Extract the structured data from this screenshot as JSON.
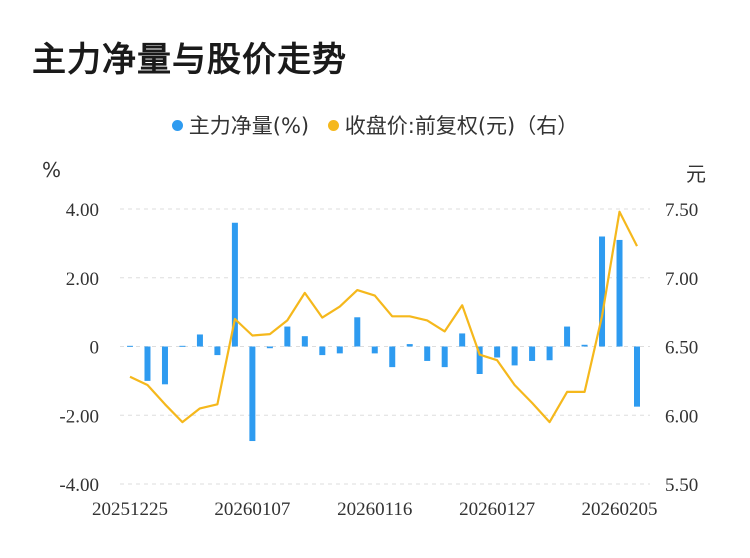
{
  "title": "主力净量与股价走势",
  "legend": {
    "bar_label": "主力净量(%)",
    "line_label": "收盘价:前复权(元)（右）"
  },
  "colors": {
    "bar": "#2e9bf0",
    "line": "#f5b81c",
    "grid": "#dddddd"
  },
  "chart_data": {
    "type": "bar",
    "title": "主力净量与股价走势",
    "left_unit": "%",
    "right_unit": "元",
    "legend_position": "top-center",
    "grid": "horizontal-dashed",
    "y_left": {
      "min": -4,
      "max": 4,
      "ticks": [
        "4.00",
        "2.00",
        "0",
        "-2.00",
        "-4.00"
      ]
    },
    "y_right": {
      "min": 5.5,
      "max": 7.5,
      "ticks": [
        "7.50",
        "7.00",
        "6.50",
        "6.00",
        "5.50"
      ]
    },
    "x_tick_labels": [
      {
        "index": 0,
        "label": "20251225"
      },
      {
        "index": 7,
        "label": "20260107"
      },
      {
        "index": 14,
        "label": "20260116"
      },
      {
        "index": 21,
        "label": "20260127"
      },
      {
        "index": 28,
        "label": "20260205"
      }
    ],
    "series": [
      {
        "name": "主力净量(%)",
        "type": "bar",
        "axis": "left",
        "values": [
          0.02,
          -1.0,
          -1.1,
          0.02,
          0.35,
          -0.25,
          3.6,
          -2.75,
          -0.05,
          0.58,
          0.3,
          -0.25,
          -0.2,
          0.85,
          -0.2,
          -0.6,
          0.07,
          -0.42,
          -0.6,
          0.38,
          -0.8,
          -0.32,
          -0.55,
          -0.42,
          -0.4,
          0.58,
          0.05,
          3.2,
          3.1,
          -1.75
        ]
      },
      {
        "name": "收盘价:前复权(元)（右）",
        "type": "line",
        "axis": "right",
        "values": [
          6.28,
          6.22,
          6.08,
          5.95,
          6.05,
          6.08,
          6.7,
          6.58,
          6.59,
          6.69,
          6.89,
          6.71,
          6.79,
          6.91,
          6.87,
          6.72,
          6.72,
          6.69,
          6.61,
          6.8,
          6.44,
          6.4,
          6.22,
          6.09,
          5.95,
          6.17,
          6.17,
          6.72,
          7.48,
          7.23
        ]
      }
    ]
  }
}
